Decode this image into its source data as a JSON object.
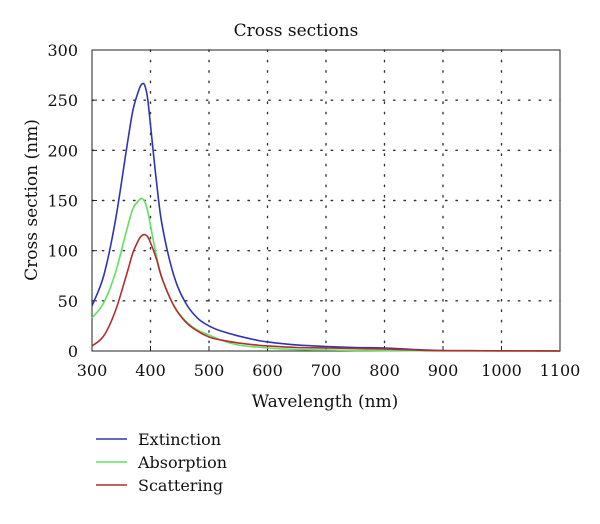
{
  "chart_data": {
    "type": "line",
    "title": "Cross sections",
    "xlabel": "Wavelength (nm)",
    "ylabel": "Cross section (nm)",
    "xlim": [
      300,
      1100
    ],
    "ylim": [
      0,
      300
    ],
    "xticks": [
      "300",
      "400",
      "500",
      "600",
      "700",
      "800",
      "900",
      "1000",
      "1100"
    ],
    "yticks": [
      "0",
      "50",
      "100",
      "150",
      "200",
      "250",
      "300"
    ],
    "grid": "dotted",
    "legend_position": "bottom-left, below plot",
    "series": [
      {
        "name": "Extinction",
        "color": "#2e35b5",
        "x": [
          300,
          320,
          340,
          360,
          370,
          380,
          385,
          390,
          395,
          400,
          410,
          420,
          440,
          460,
          480,
          500,
          520,
          550,
          580,
          600,
          650,
          700,
          750,
          800,
          850,
          900,
          950,
          1000,
          1100
        ],
        "y": [
          45,
          75,
          130,
          205,
          240,
          260,
          266,
          265,
          252,
          225,
          170,
          125,
          75,
          48,
          33,
          25,
          20,
          15,
          11,
          9,
          6,
          4.5,
          3.5,
          3,
          1.5,
          0.5,
          0.3,
          0.2,
          0.1
        ]
      },
      {
        "name": "Absorption",
        "color": "#5ee35e",
        "x": [
          300,
          320,
          340,
          360,
          370,
          380,
          385,
          390,
          395,
          400,
          410,
          420,
          440,
          460,
          480,
          500,
          520,
          550,
          600,
          650,
          700,
          750,
          800,
          900,
          1100
        ],
        "y": [
          33,
          48,
          78,
          122,
          142,
          150,
          152,
          149,
          140,
          125,
          95,
          72,
          45,
          30,
          21,
          16,
          11,
          6,
          3,
          1.5,
          1,
          0.6,
          0.4,
          0.2,
          0.1
        ]
      },
      {
        "name": "Scattering",
        "color": "#b42d2d",
        "x": [
          300,
          320,
          340,
          360,
          370,
          380,
          385,
          390,
          395,
          400,
          410,
          420,
          440,
          460,
          480,
          500,
          520,
          550,
          580,
          600,
          650,
          700,
          750,
          800,
          850,
          900,
          1100
        ],
        "y": [
          5,
          15,
          40,
          78,
          98,
          111,
          115,
          116,
          114,
          108,
          92,
          72,
          45,
          29,
          20,
          14,
          11,
          8,
          6,
          5,
          3.5,
          3,
          2.5,
          2,
          1,
          0.3,
          0.1
        ]
      }
    ]
  }
}
